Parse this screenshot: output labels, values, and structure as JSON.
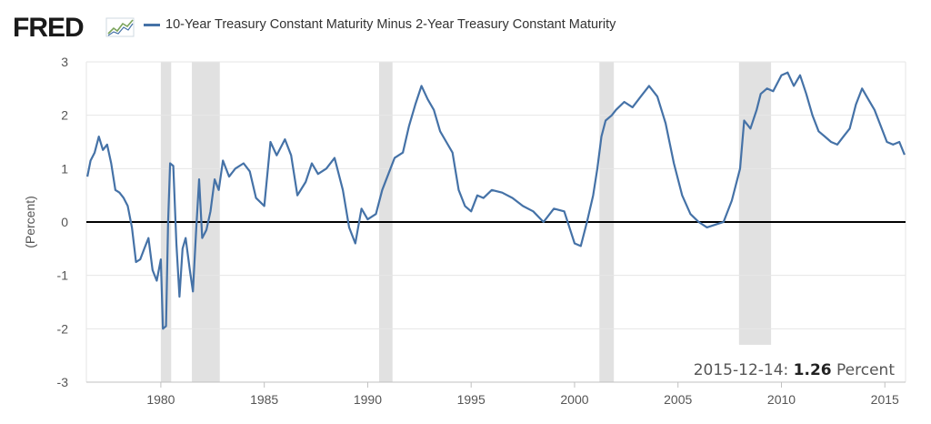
{
  "brand": {
    "logo_text": "FRED"
  },
  "legend": {
    "series_label": "10-Year Treasury Constant Maturity Minus 2-Year Treasury Constant Maturity"
  },
  "readout": {
    "date": "2015-12-14:",
    "value": "1.26",
    "unit": "Percent"
  },
  "colors": {
    "series": "#4572a7",
    "recession": "#e1e1e1",
    "zero_line": "#000000",
    "grid": "#e6e6e6"
  },
  "chart_data": {
    "type": "line",
    "title": "",
    "xlabel": "",
    "ylabel": "(Percent)",
    "xlim": [
      1976.4,
      2016.0
    ],
    "ylim": [
      -3,
      3
    ],
    "x_ticks": [
      "1980",
      "1985",
      "1990",
      "1995",
      "2000",
      "2005",
      "2010",
      "2015"
    ],
    "y_ticks": [
      "3",
      "2",
      "1",
      "0",
      "-1",
      "-2",
      "-3"
    ],
    "grid": true,
    "legend_position": "top",
    "recessions": [
      [
        1980.0,
        1980.5
      ],
      [
        1981.5,
        1982.85
      ],
      [
        1990.55,
        1991.2
      ],
      [
        2001.2,
        2001.9
      ],
      [
        2007.95,
        2009.5
      ]
    ],
    "series": [
      {
        "name": "10-Year Treasury Constant Maturity Minus 2-Year Treasury Constant Maturity",
        "x": [
          1976.45,
          1976.6,
          1976.8,
          1977.0,
          1977.2,
          1977.4,
          1977.6,
          1977.8,
          1978.0,
          1978.2,
          1978.4,
          1978.6,
          1978.8,
          1979.0,
          1979.2,
          1979.4,
          1979.6,
          1979.8,
          1980.0,
          1980.1,
          1980.25,
          1980.35,
          1980.45,
          1980.6,
          1980.75,
          1980.9,
          1981.05,
          1981.2,
          1981.4,
          1981.55,
          1981.7,
          1981.85,
          1982.0,
          1982.2,
          1982.4,
          1982.6,
          1982.8,
          1983.0,
          1983.3,
          1983.6,
          1984.0,
          1984.3,
          1984.6,
          1985.0,
          1985.3,
          1985.6,
          1986.0,
          1986.3,
          1986.6,
          1987.0,
          1987.3,
          1987.6,
          1988.0,
          1988.4,
          1988.8,
          1989.1,
          1989.4,
          1989.7,
          1990.0,
          1990.4,
          1990.7,
          1991.0,
          1991.3,
          1991.7,
          1992.0,
          1992.3,
          1992.6,
          1992.9,
          1993.2,
          1993.5,
          1993.8,
          1994.1,
          1994.4,
          1994.7,
          1995.0,
          1995.3,
          1995.6,
          1996.0,
          1996.5,
          1997.0,
          1997.5,
          1998.0,
          1998.5,
          1999.0,
          1999.5,
          2000.0,
          2000.3,
          2000.6,
          2000.9,
          2001.1,
          2001.3,
          2001.5,
          2001.8,
          2002.0,
          2002.4,
          2002.8,
          2003.2,
          2003.6,
          2004.0,
          2004.4,
          2004.8,
          2005.2,
          2005.6,
          2006.0,
          2006.4,
          2006.8,
          2007.2,
          2007.6,
          2008.0,
          2008.2,
          2008.5,
          2008.8,
          2009.0,
          2009.3,
          2009.6,
          2010.0,
          2010.3,
          2010.6,
          2010.9,
          2011.2,
          2011.5,
          2011.8,
          2012.1,
          2012.4,
          2012.7,
          2013.0,
          2013.3,
          2013.6,
          2013.9,
          2014.2,
          2014.5,
          2014.8,
          2015.1,
          2015.4,
          2015.7,
          2015.95
        ],
        "values": [
          0.85,
          1.15,
          1.3,
          1.6,
          1.35,
          1.45,
          1.1,
          0.6,
          0.55,
          0.45,
          0.3,
          -0.1,
          -0.75,
          -0.7,
          -0.5,
          -0.3,
          -0.9,
          -1.1,
          -0.7,
          -2.0,
          -1.95,
          0.0,
          1.1,
          1.05,
          -0.4,
          -1.4,
          -0.5,
          -0.3,
          -0.9,
          -1.3,
          -0.2,
          0.8,
          -0.3,
          -0.15,
          0.2,
          0.8,
          0.6,
          1.15,
          0.85,
          1.0,
          1.1,
          0.95,
          0.45,
          0.3,
          1.5,
          1.25,
          1.55,
          1.25,
          0.5,
          0.75,
          1.1,
          0.9,
          1.0,
          1.2,
          0.6,
          -0.1,
          -0.4,
          0.25,
          0.05,
          0.15,
          0.6,
          0.9,
          1.2,
          1.3,
          1.8,
          2.2,
          2.55,
          2.3,
          2.1,
          1.7,
          1.5,
          1.3,
          0.6,
          0.3,
          0.2,
          0.5,
          0.45,
          0.6,
          0.55,
          0.45,
          0.3,
          0.2,
          0.0,
          0.25,
          0.2,
          -0.4,
          -0.45,
          0.0,
          0.5,
          1.0,
          1.6,
          1.9,
          2.0,
          2.1,
          2.25,
          2.15,
          2.35,
          2.55,
          2.35,
          1.85,
          1.1,
          0.5,
          0.15,
          0.0,
          -0.1,
          -0.05,
          0.0,
          0.4,
          1.0,
          1.9,
          1.75,
          2.1,
          2.4,
          2.5,
          2.45,
          2.75,
          2.8,
          2.55,
          2.75,
          2.4,
          2.0,
          1.7,
          1.6,
          1.5,
          1.45,
          1.6,
          1.75,
          2.2,
          2.5,
          2.3,
          2.1,
          1.8,
          1.5,
          1.45,
          1.5,
          1.26
        ]
      }
    ]
  }
}
